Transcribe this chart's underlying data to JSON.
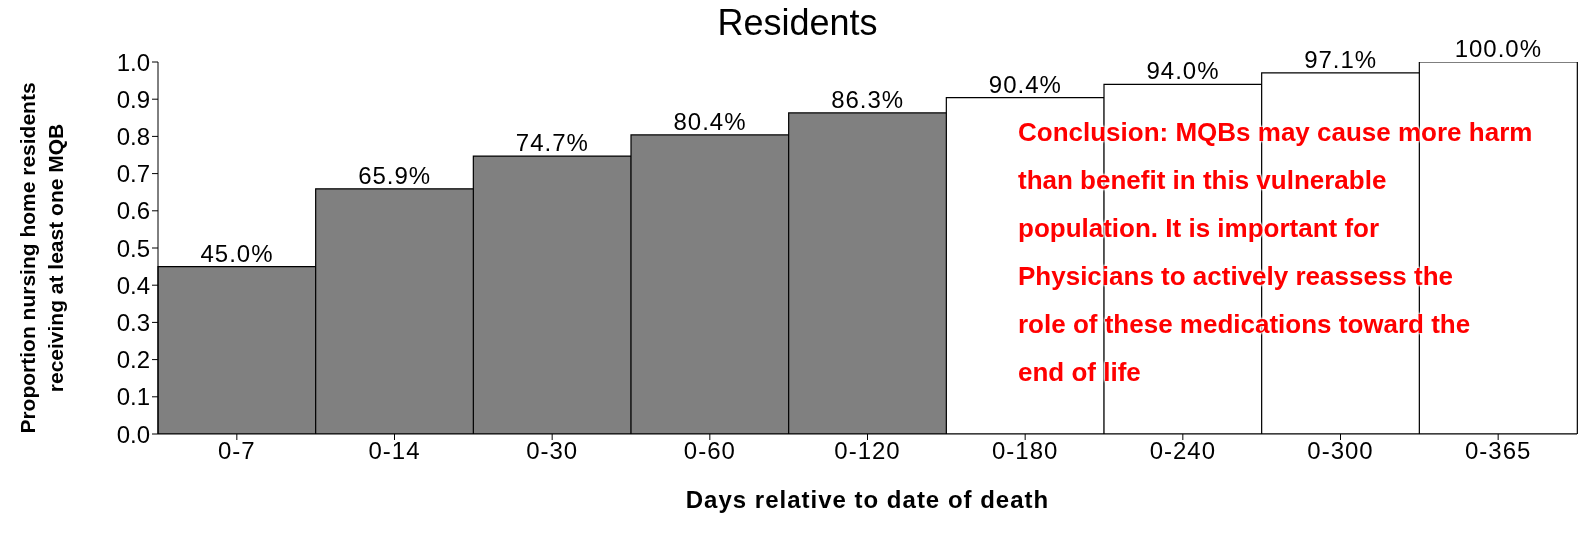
{
  "chart_data": {
    "type": "bar",
    "title": "Residents",
    "xlabel": "Days relative to date of death",
    "ylabel": "Proportion nursing home residents\nreceiving at least one MQB",
    "categories": [
      "0-7",
      "0-14",
      "0-30",
      "0-60",
      "0-120",
      "0-180",
      "0-240",
      "0-300",
      "0-365"
    ],
    "values": [
      0.45,
      0.659,
      0.747,
      0.804,
      0.863,
      0.904,
      0.94,
      0.971,
      1.0
    ],
    "value_labels": [
      "45.0%",
      "65.9%",
      "74.7%",
      "80.4%",
      "86.3%",
      "90.4%",
      "94.0%",
      "97.1%",
      "100.0%"
    ],
    "colors": [
      "#808080",
      "#808080",
      "#808080",
      "#808080",
      "#808080",
      "#ffffff",
      "#ffffff",
      "#ffffff",
      "#ffffff"
    ],
    "ylim": [
      0,
      1
    ],
    "yticks": [
      {
        "value": 0,
        "label": "0.0"
      },
      0.1,
      0.2,
      0.3,
      0.4,
      0.5,
      0.6,
      0.7,
      0.8,
      0.9,
      {
        "value": 1,
        "label": "1.0"
      }
    ],
    "annotations": [
      "Conclusion: MQBs may cause more harm than benefit in this vulnerable population. It is important for Physicians to actively reassess the role of these medications toward the end of life"
    ],
    "grid": false,
    "legend": false
  }
}
